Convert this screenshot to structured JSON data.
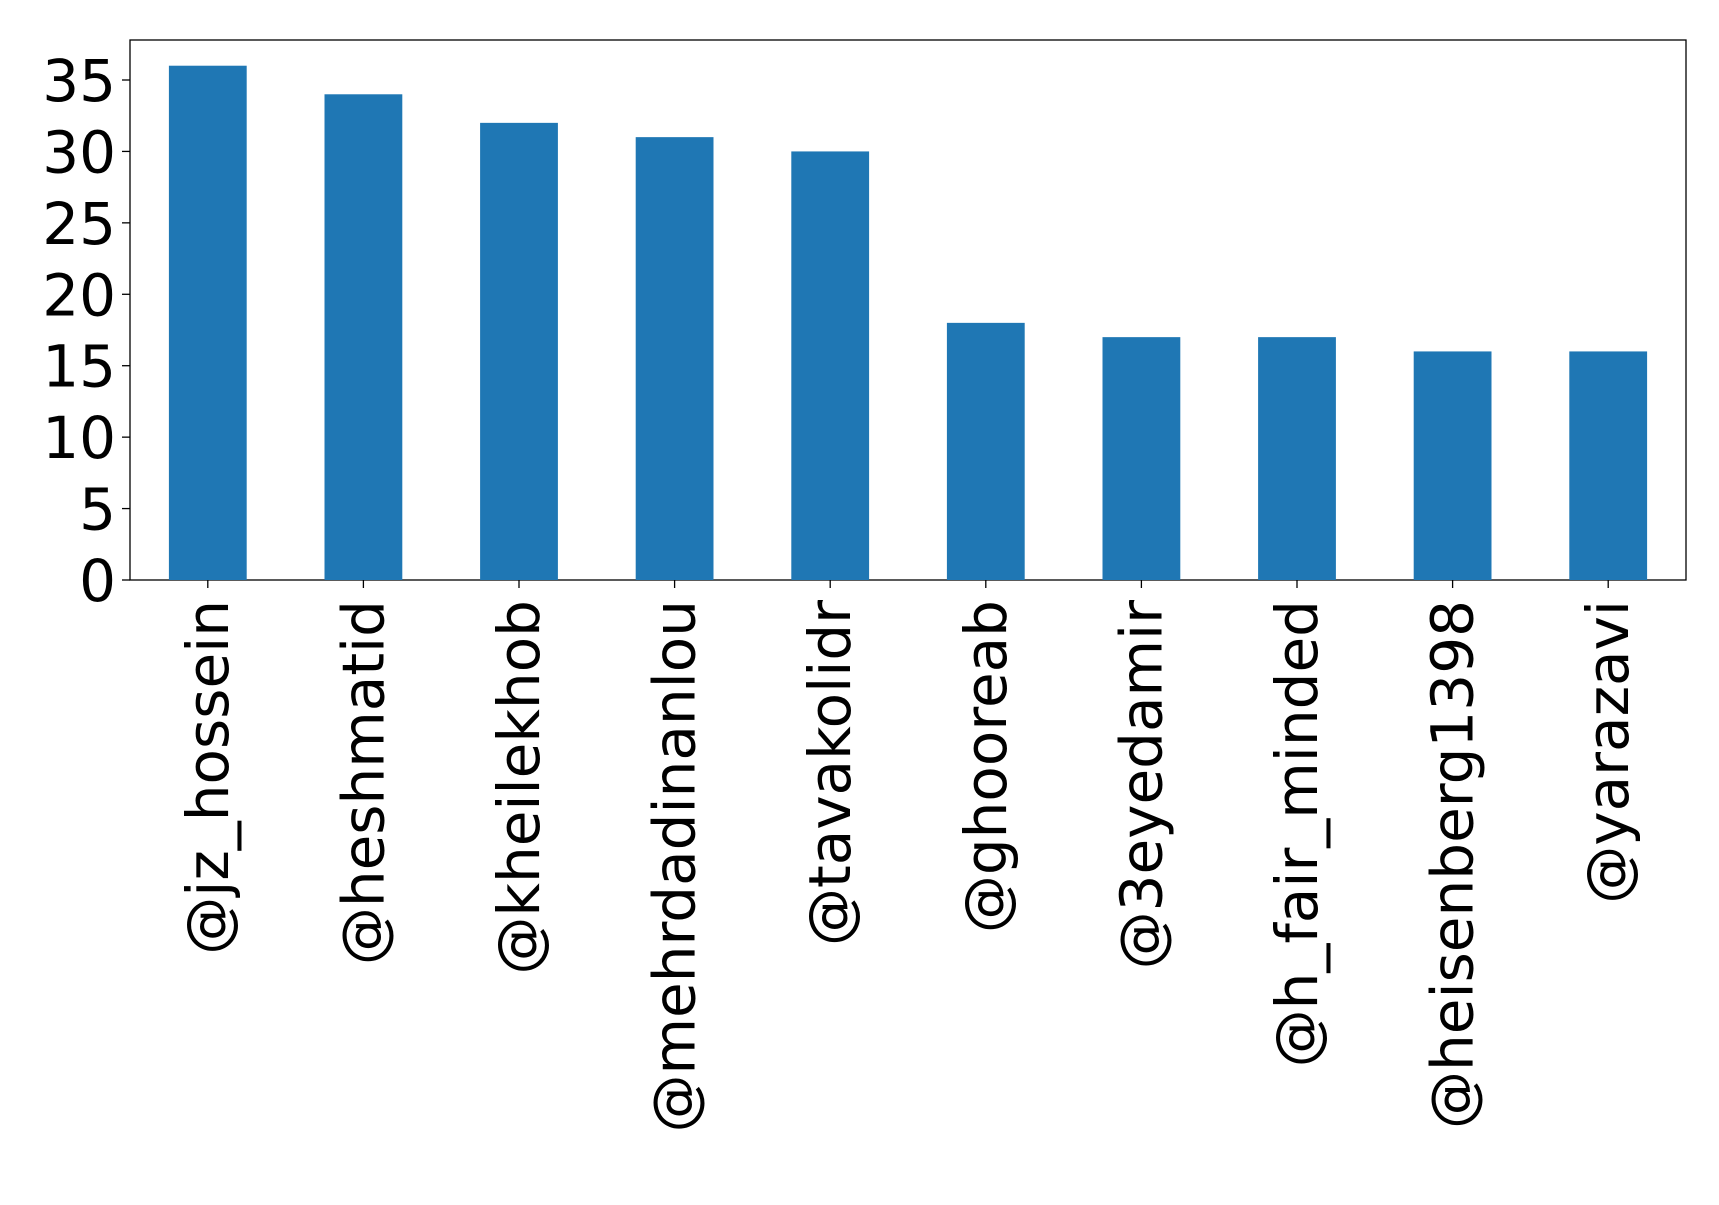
{
  "chart_data": {
    "type": "bar",
    "title": "",
    "xlabel": "",
    "ylabel": "",
    "categories": [
      "@jz_hossein",
      "@heshmatid",
      "@kheilekhob",
      "@mehrdadinanlou",
      "@tavakolidr",
      "@ghooreab",
      "@3eyedamir",
      "@h_fair_minded",
      "@heisenberg1398",
      "@yarazavi"
    ],
    "values": [
      36,
      34,
      32,
      31,
      30,
      18,
      17,
      17,
      16,
      16
    ],
    "ylim": [
      0,
      37.8
    ],
    "yticks": [
      "0",
      "5",
      "10",
      "15",
      "20",
      "25",
      "30",
      "35"
    ],
    "bar_color": "#1f77b4",
    "grid": false,
    "legend": "none"
  }
}
